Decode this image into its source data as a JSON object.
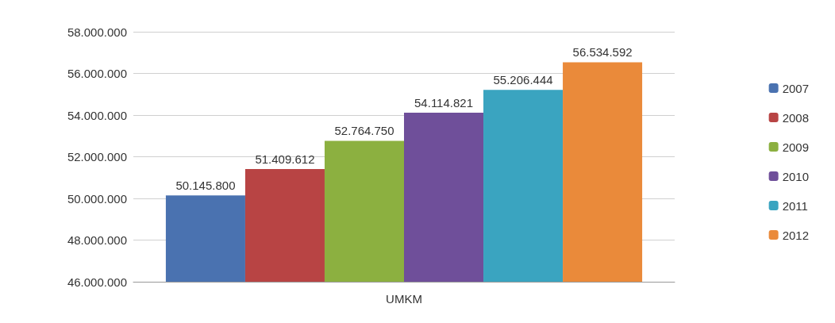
{
  "chart_data": {
    "type": "bar",
    "categories": [
      "UMKM"
    ],
    "series": [
      {
        "name": "2007",
        "color": "#4a72b0",
        "values": [
          50145800
        ],
        "value_labels": [
          "50.145.800"
        ]
      },
      {
        "name": "2008",
        "color": "#b84444",
        "values": [
          51409612
        ],
        "value_labels": [
          "51.409.612"
        ]
      },
      {
        "name": "2009",
        "color": "#8cb040",
        "values": [
          52764750
        ],
        "value_labels": [
          "52.764.750"
        ]
      },
      {
        "name": "2010",
        "color": "#6f4f9a",
        "values": [
          54114821
        ],
        "value_labels": [
          "54.114.821"
        ]
      },
      {
        "name": "2011",
        "color": "#3aa4c0",
        "values": [
          55206444
        ],
        "value_labels": [
          "55.206.444"
        ]
      },
      {
        "name": "2012",
        "color": "#ea8a3a",
        "values": [
          56534592
        ],
        "value_labels": [
          "56.534.592"
        ]
      }
    ],
    "ylim": [
      46000000,
      58000000
    ],
    "yticks": [
      {
        "value": 46000000,
        "label": "46.000.000"
      },
      {
        "value": 48000000,
        "label": "48.000.000"
      },
      {
        "value": 50000000,
        "label": "50.000.000"
      },
      {
        "value": 52000000,
        "label": "52.000.000"
      },
      {
        "value": 54000000,
        "label": "54.000.000"
      },
      {
        "value": 56000000,
        "label": "56.000.000"
      },
      {
        "value": 58000000,
        "label": "58.000.000"
      }
    ],
    "grid": "y",
    "legend": "right"
  }
}
